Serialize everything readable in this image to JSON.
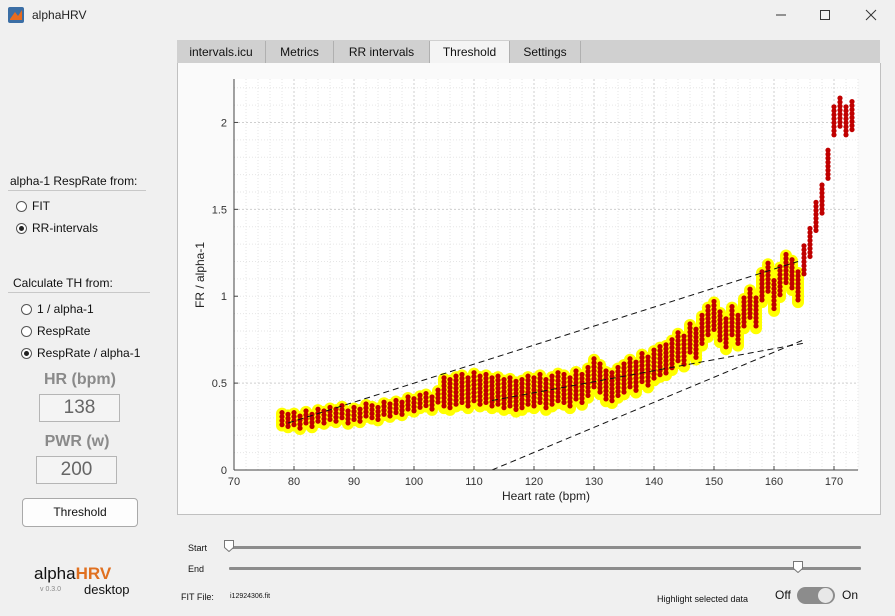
{
  "window": {
    "title": "alphaHRV"
  },
  "left": {
    "resp_group": "alpha-1 RespRate from:",
    "resp_options": [
      {
        "label": "FIT",
        "selected": false
      },
      {
        "label": "RR-intervals",
        "selected": true
      }
    ],
    "th_group": "Calculate TH from:",
    "th_options": [
      {
        "label": "1 / alpha-1",
        "selected": false
      },
      {
        "label": "RespRate",
        "selected": false
      },
      {
        "label": "RespRate / alpha-1",
        "selected": true
      }
    ],
    "hr_label": "HR (bpm)",
    "hr_value": "138",
    "pwr_label": "PWR (w)",
    "pwr_value": "200",
    "threshold_button": "Threshold",
    "logo_alpha": "alpha",
    "logo_hrv": "HRV",
    "version": "v 0.3.0",
    "logo_desktop": "desktop"
  },
  "tabs": [
    {
      "label": "intervals.icu",
      "active": false
    },
    {
      "label": "Metrics",
      "active": false
    },
    {
      "label": "RR intervals",
      "active": false
    },
    {
      "label": "Threshold",
      "active": true
    },
    {
      "label": "Settings",
      "active": false
    }
  ],
  "chart_data": {
    "type": "scatter",
    "xlabel": "Heart rate (bpm)",
    "ylabel": "FR / alpha-1",
    "xlim": [
      70,
      174
    ],
    "ylim": [
      0,
      2.25
    ],
    "xticks": [
      70,
      80,
      90,
      100,
      110,
      120,
      130,
      140,
      150,
      160,
      170
    ],
    "yticks": [
      "0",
      "0.5",
      "1",
      "1.5",
      "2"
    ],
    "grid": "major and minor, dotted",
    "colors": {
      "points": "#c00000",
      "highlight": "#ffff00"
    },
    "highlight_range_bpm": [
      78,
      164
    ],
    "points": [
      [
        78,
        0.29
      ],
      [
        79,
        0.28
      ],
      [
        80,
        0.29
      ],
      [
        81,
        0.27
      ],
      [
        82,
        0.3
      ],
      [
        83,
        0.28
      ],
      [
        84,
        0.31
      ],
      [
        85,
        0.3
      ],
      [
        86,
        0.32
      ],
      [
        87,
        0.31
      ],
      [
        88,
        0.33
      ],
      [
        89,
        0.3
      ],
      [
        90,
        0.32
      ],
      [
        91,
        0.31
      ],
      [
        92,
        0.34
      ],
      [
        93,
        0.33
      ],
      [
        94,
        0.32
      ],
      [
        95,
        0.35
      ],
      [
        96,
        0.34
      ],
      [
        97,
        0.36
      ],
      [
        98,
        0.35
      ],
      [
        99,
        0.38
      ],
      [
        100,
        0.37
      ],
      [
        101,
        0.39
      ],
      [
        102,
        0.4
      ],
      [
        103,
        0.38
      ],
      [
        104,
        0.42
      ],
      [
        105,
        0.44
      ],
      [
        106,
        0.43
      ],
      [
        107,
        0.45
      ],
      [
        108,
        0.46
      ],
      [
        109,
        0.44
      ],
      [
        110,
        0.47
      ],
      [
        111,
        0.45
      ],
      [
        112,
        0.46
      ],
      [
        113,
        0.44
      ],
      [
        114,
        0.45
      ],
      [
        115,
        0.43
      ],
      [
        116,
        0.44
      ],
      [
        117,
        0.42
      ],
      [
        118,
        0.43
      ],
      [
        119,
        0.45
      ],
      [
        120,
        0.44
      ],
      [
        121,
        0.46
      ],
      [
        122,
        0.43
      ],
      [
        123,
        0.45
      ],
      [
        124,
        0.47
      ],
      [
        125,
        0.46
      ],
      [
        126,
        0.44
      ],
      [
        127,
        0.48
      ],
      [
        128,
        0.46
      ],
      [
        129,
        0.5
      ],
      [
        130,
        0.55
      ],
      [
        131,
        0.52
      ],
      [
        132,
        0.48
      ],
      [
        133,
        0.47
      ],
      [
        134,
        0.5
      ],
      [
        135,
        0.52
      ],
      [
        136,
        0.55
      ],
      [
        137,
        0.53
      ],
      [
        138,
        0.58
      ],
      [
        139,
        0.56
      ],
      [
        140,
        0.6
      ],
      [
        141,
        0.62
      ],
      [
        142,
        0.63
      ],
      [
        143,
        0.66
      ],
      [
        144,
        0.7
      ],
      [
        145,
        0.68
      ],
      [
        146,
        0.75
      ],
      [
        147,
        0.72
      ],
      [
        148,
        0.8
      ],
      [
        149,
        0.85
      ],
      [
        150,
        0.88
      ],
      [
        151,
        0.82
      ],
      [
        152,
        0.78
      ],
      [
        153,
        0.85
      ],
      [
        154,
        0.8
      ],
      [
        155,
        0.9
      ],
      [
        156,
        0.95
      ],
      [
        157,
        0.9
      ],
      [
        158,
        1.05
      ],
      [
        159,
        1.1
      ],
      [
        160,
        1.0
      ],
      [
        161,
        1.08
      ],
      [
        162,
        1.15
      ],
      [
        163,
        1.12
      ],
      [
        164,
        1.05
      ],
      [
        165,
        1.2
      ],
      [
        166,
        1.3
      ],
      [
        167,
        1.45
      ],
      [
        168,
        1.55
      ],
      [
        169,
        1.75
      ],
      [
        170,
        2.0
      ],
      [
        171,
        2.05
      ],
      [
        172,
        2.0
      ],
      [
        173,
        2.03
      ]
    ],
    "fit_line": [
      [
        79,
        0.27
      ],
      [
        164,
        1.2
      ]
    ],
    "threshold_line": [
      [
        113,
        0
      ],
      [
        165,
        0.75
      ]
    ],
    "lower_dashed": [
      [
        113,
        0.4
      ],
      [
        165,
        0.73
      ]
    ]
  },
  "bottom": {
    "start_label": "Start",
    "end_label": "End",
    "start_value": 0.0,
    "end_value": 0.9,
    "fit_file_label": "FIT File:",
    "fit_file_value": "i12924306.fit",
    "highlight_label": "Highlight selected data",
    "toggle_off": "Off",
    "toggle_on": "On",
    "toggle_state": "On"
  }
}
